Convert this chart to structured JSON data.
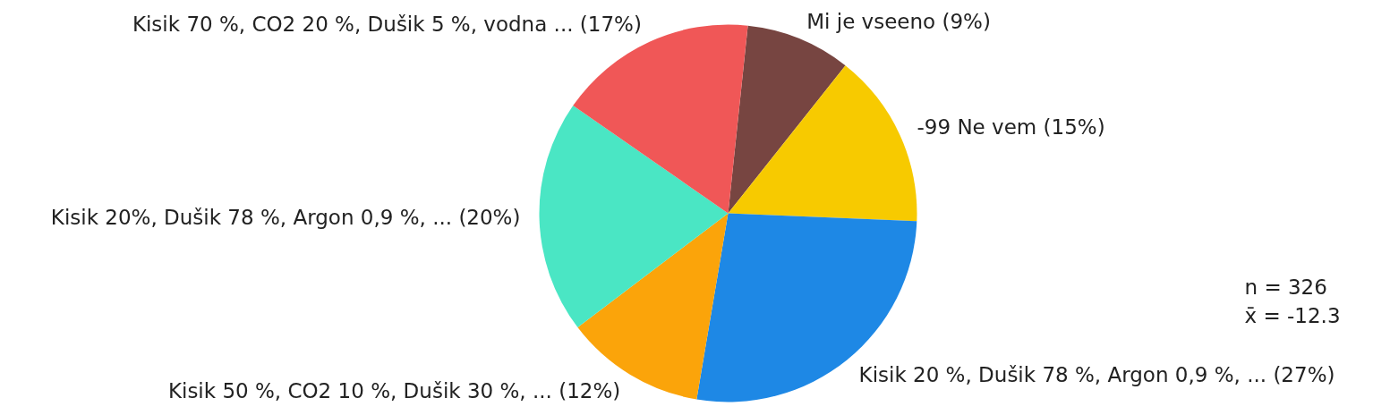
{
  "chart_data": {
    "type": "pie",
    "categories": [
      "Mi je vseeno (9%)",
      "-99 Ne vem (15%)",
      "Kisik 20 %, Dušik 78 %, Argon 0,9 %, ... (27%)",
      "Kisik 50 %, CO2 10 %, Dušik 30 %, ... (12%)",
      "Kisik 20%, Dušik 78 %, Argon 0,9 %, ... (20%)",
      "Kisik 70 %, CO2 20 %, Dušik 5 %, vodna ... (17%)"
    ],
    "values": [
      9,
      15,
      27,
      12,
      20,
      17
    ],
    "colors": [
      "#774541",
      "#f7ca00",
      "#1e88e5",
      "#fba40a",
      "#4ae6c4",
      "#f05757"
    ],
    "annotations": [
      "n = 326",
      "x̄ = -12.3"
    ]
  }
}
